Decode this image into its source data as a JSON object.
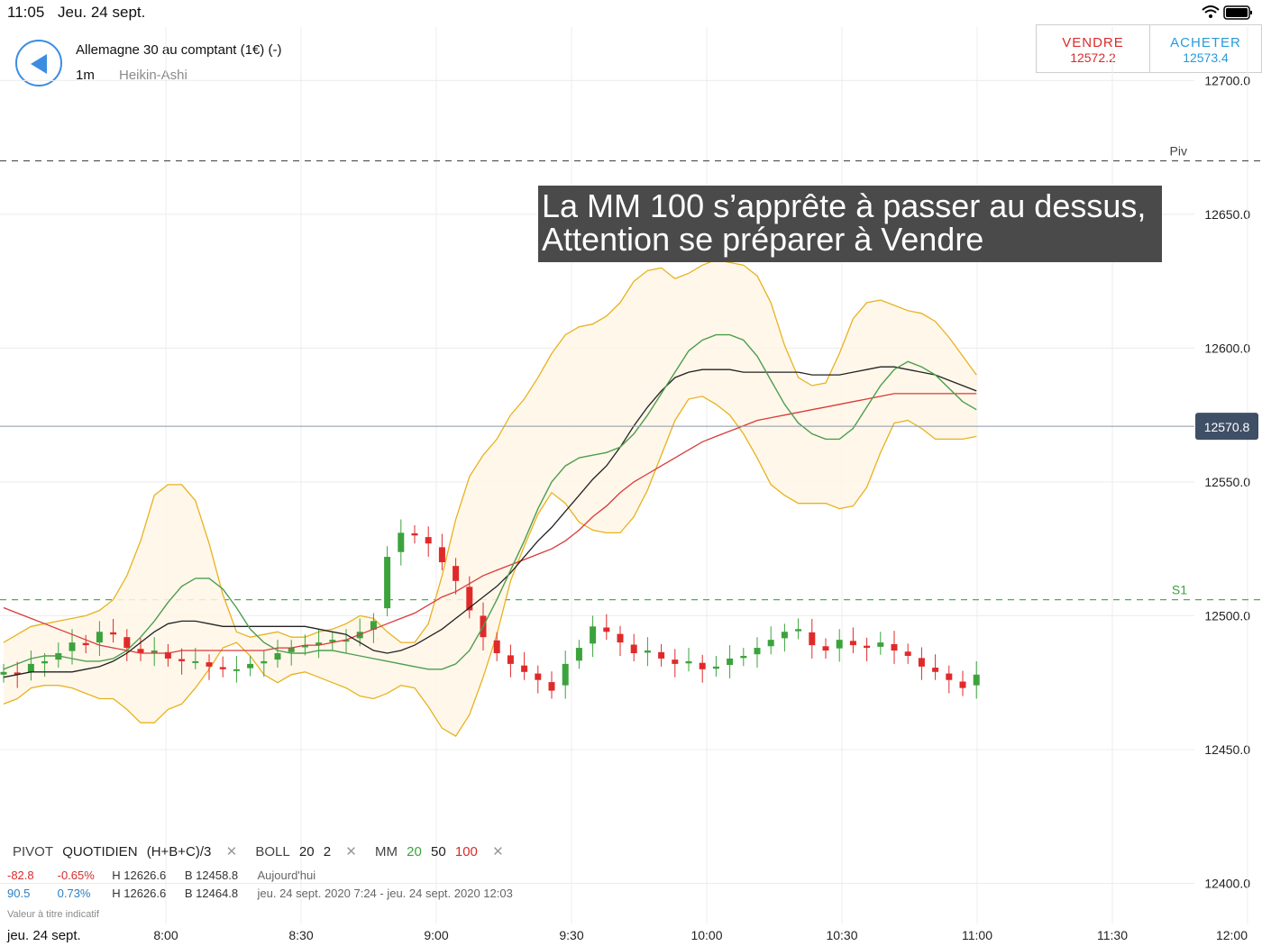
{
  "status": {
    "time": "11:05",
    "date": "Jeu. 24 sept."
  },
  "header": {
    "instrument": "Allemagne 30 au comptant (1€) (-)",
    "interval": "1m",
    "chart_type": "Heikin-Ashi"
  },
  "trade": {
    "sell_label": "VENDRE",
    "sell_price": "12572.2",
    "buy_label": "ACHETER",
    "buy_price": "12573.4"
  },
  "annotation": {
    "line1": "La MM 100 s’apprête à passer au dessus,",
    "line2": "Attention se préparer à Vendre"
  },
  "legend": {
    "pivot": "PIVOT",
    "pivot_type": "QUOTIDIEN",
    "pivot_formula": "(H+B+C)/3",
    "boll": "BOLL",
    "boll_period": "20",
    "boll_dev": "2",
    "mm": "MM",
    "mm1": "20",
    "mm2": "50",
    "mm3": "100",
    "close_glyph": "✕"
  },
  "stats": {
    "row1": {
      "change": "-82.8",
      "pct": "-0.65%",
      "high": "H 12626.6",
      "low": "B 12458.8",
      "period": "Aujourd'hui"
    },
    "row2": {
      "change": "90.5",
      "pct": "0.73%",
      "high": "H 12626.6",
      "low": "B 12464.8",
      "period": "jeu. 24 sept. 2020 7:24 - jeu. 24 sept. 2020 12:03"
    }
  },
  "note": "Valeur à titre indicatif",
  "footer_date": "jeu. 24 sept.",
  "colors": {
    "up": "#3ca33c",
    "down": "#e02a2a",
    "boll": "#e8b21e",
    "mm20": "#4d9e4d",
    "mm50": "#222222",
    "mm100": "#d93a3a",
    "accent": "#3b8de0"
  },
  "chart_data": {
    "type": "candlestick",
    "chart_style": "Heikin-Ashi",
    "ylim": [
      12385,
      12720
    ],
    "y_ticks": [
      12700,
      12650,
      12600,
      12550,
      12500,
      12450,
      12400
    ],
    "y_tick_labels": [
      "12700.0",
      "12650.0",
      "12600.0",
      "12550.0",
      "12500.0",
      "12450.0",
      "12400.0"
    ],
    "x_ticks_labels": [
      "8:00",
      "8:30",
      "9:00",
      "9:30",
      "10:00",
      "10:30",
      "11:00",
      "11:30",
      "12:00"
    ],
    "grid": true,
    "current_price": 12570.8,
    "current_price_label": "12570.8",
    "pivot_lines": [
      {
        "name": "Piv",
        "value": 12670
      },
      {
        "name": "S1",
        "value": 12506
      }
    ],
    "series": [
      {
        "name": "MM 20",
        "values": [
          12480,
          12482,
          12484,
          12485,
          12485,
          12484,
          12483,
          12483,
          12484,
          12487,
          12492,
          12498,
          12505,
          12511,
          12514,
          12514,
          12510,
          12503,
          12495,
          12490,
          12487,
          12486,
          12486,
          12487,
          12487,
          12486,
          12485,
          12484,
          12483,
          12482,
          12481,
          12480,
          12480,
          12482,
          12487,
          12496,
          12506,
          12517,
          12528,
          12540,
          12550,
          12556,
          12559,
          12560,
          12561,
          12563,
          12568,
          12575,
          12583,
          12591,
          12599,
          12603,
          12605,
          12605,
          12603,
          12597,
          12588,
          12579,
          12572,
          12568,
          12566,
          12566,
          12570,
          12578,
          12586,
          12592,
          12595,
          12593,
          12590,
          12585,
          12580,
          12577
        ]
      },
      {
        "name": "MM 50",
        "values": [
          12477,
          12478,
          12479,
          12479,
          12479,
          12479,
          12480,
          12481,
          12483,
          12486,
          12490,
          12494,
          12497,
          12498,
          12498,
          12497,
          12496,
          12496,
          12496,
          12496,
          12496,
          12496,
          12496,
          12495,
          12494,
          12493,
          12490,
          12487,
          12486,
          12487,
          12489,
          12492,
          12495,
          12499,
          12503,
          12507,
          12511,
          12516,
          12522,
          12528,
          12533,
          12539,
          12545,
          12551,
          12556,
          12563,
          12571,
          12578,
          12584,
          12589,
          12591,
          12592,
          12592,
          12592,
          12591,
          12591,
          12591,
          12591,
          12591,
          12590,
          12590,
          12590,
          12591,
          12592,
          12593,
          12593,
          12592,
          12591,
          12590,
          12588,
          12586,
          12584
        ]
      },
      {
        "name": "MM 100",
        "values": [
          12503,
          12501,
          12499,
          12497,
          12495,
          12493,
          12491,
          12489,
          12488,
          12487,
          12486,
          12486,
          12486,
          12487,
          12487,
          12487,
          12487,
          12487,
          12487,
          12487,
          12488,
          12488,
          12489,
          12489,
          12490,
          12491,
          12493,
          12495,
          12497,
          12499,
          12501,
          12504,
          12507,
          12509,
          12512,
          12515,
          12517,
          12519,
          12521,
          12523,
          12525,
          12528,
          12532,
          12537,
          12541,
          12546,
          12550,
          12553,
          12556,
          12559,
          12562,
          12565,
          12567,
          12569,
          12571,
          12573,
          12574,
          12575,
          12576,
          12577,
          12578,
          12579,
          12580,
          12581,
          12582,
          12583,
          12583,
          12583,
          12583,
          12583,
          12583,
          12583
        ]
      },
      {
        "name": "BOLL haut",
        "values": [
          12490,
          12493,
          12496,
          12497,
          12498,
          12499,
          12500,
          12502,
          12506,
          12515,
          12528,
          12545,
          12549,
          12549,
          12543,
          12527,
          12508,
          12494,
          12492,
          12493,
          12494,
          12492,
          12492,
          12494,
          12495,
          12497,
          12500,
          12499,
          12494,
          12490,
          12490,
          12497,
          12515,
          12536,
          12552,
          12560,
          12566,
          12575,
          12581,
          12589,
          12598,
          12605,
          12608,
          12609,
          12612,
          12617,
          12625,
          12629,
          12630,
          12626,
          12628,
          12631,
          12633,
          12632,
          12631,
          12627,
          12617,
          12601,
          12589,
          12586,
          12587,
          12598,
          12611,
          12617,
          12618,
          12616,
          12614,
          12613,
          12610,
          12604,
          12597,
          12590
        ]
      },
      {
        "name": "BOLL bas",
        "values": [
          12467,
          12469,
          12473,
          12474,
          12474,
          12473,
          12471,
          12469,
          12469,
          12465,
          12460,
          12460,
          12465,
          12467,
          12473,
          12480,
          12488,
          12490,
          12485,
          12478,
          12475,
          12478,
          12479,
          12477,
          12475,
          12473,
          12470,
          12469,
          12471,
          12474,
          12473,
          12466,
          12458,
          12455,
          12463,
          12477,
          12493,
          12513,
          12526,
          12538,
          12546,
          12542,
          12535,
          12532,
          12531,
          12531,
          12537,
          12547,
          12560,
          12573,
          12581,
          12582,
          12579,
          12575,
          12568,
          12559,
          12549,
          12545,
          12542,
          12542,
          12542,
          12540,
          12541,
          12548,
          12561,
          12572,
          12573,
          12570,
          12566,
          12566,
          12566,
          12567
        ]
      },
      {
        "name": "Heikin-Ashi close",
        "values": [
          12479,
          12478,
          12482,
          12483,
          12486,
          12490,
          12489,
          12494,
          12493,
          12488,
          12486,
          12487,
          12484,
          12483,
          12483,
          12481,
          12480,
          12480,
          12482,
          12483,
          12486,
          12488,
          12489,
          12490,
          12491,
          12491,
          12494,
          12498,
          12522,
          12531,
          12530,
          12527,
          12520,
          12513,
          12502,
          12492,
          12486,
          12482,
          12479,
          12476,
          12472,
          12482,
          12488,
          12496,
          12494,
          12490,
          12486,
          12487,
          12484,
          12482,
          12483,
          12480,
          12481,
          12484,
          12485,
          12488,
          12491,
          12494,
          12495,
          12489,
          12487,
          12491,
          12489,
          12488,
          12490,
          12487,
          12485,
          12481,
          12479,
          12476,
          12473,
          12478
        ]
      }
    ]
  }
}
